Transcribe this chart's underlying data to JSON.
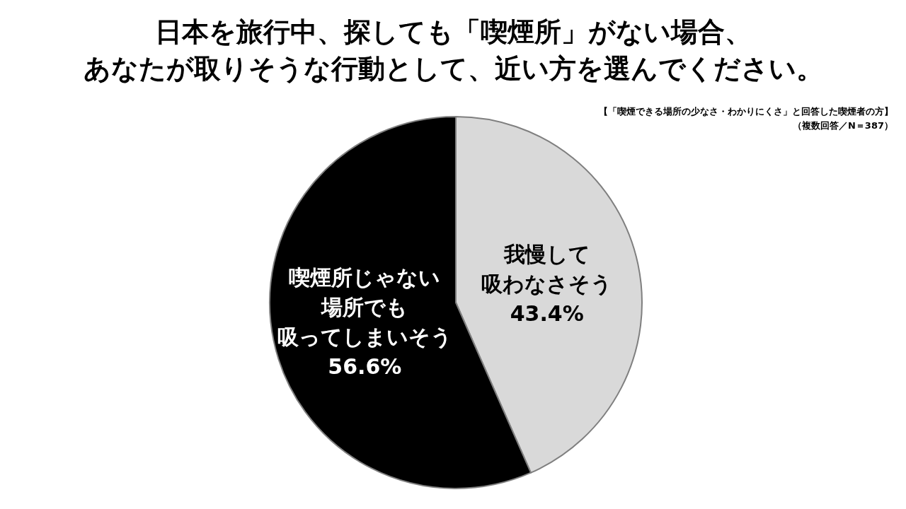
{
  "chart_data": {
    "type": "pie",
    "title": "日本を旅行中、探しても「喫煙所」がない場合、あなたが取りそうな行動として、近い方を選んでください。",
    "subtitle": "【「喫煙できる場所の少なさ・わかりにくさ」と回答した喫煙者の方】",
    "annotations": [
      "（複数回答／N＝387）"
    ],
    "categories": [
      "我慢して吸わなさそう",
      "喫煙所じゃない場所でも吸ってしまいそう"
    ],
    "values": [
      43.4,
      56.6
    ],
    "colors": [
      "#d9d9d9",
      "#000000"
    ],
    "value_labels": [
      "43.4%",
      "56.6%"
    ],
    "legend": false
  }
}
